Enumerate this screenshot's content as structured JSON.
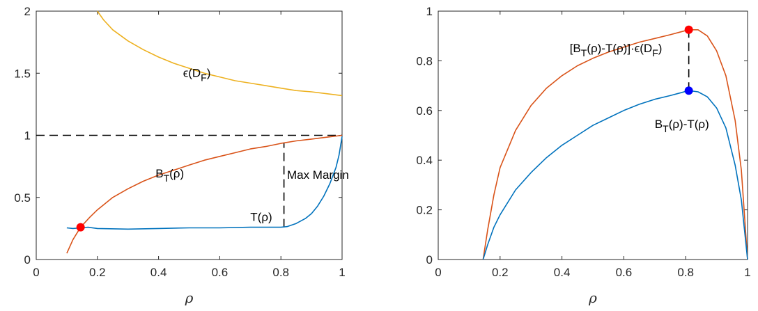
{
  "chart_data": [
    {
      "type": "line",
      "xlabel": "ρ",
      "xlim": [
        0,
        1
      ],
      "ylim": [
        0,
        2
      ],
      "xticks": [
        "0",
        "0.2",
        "0.4",
        "0.6",
        "0.8",
        "1"
      ],
      "yticks": [
        "0",
        "0.5",
        "1",
        "1.5",
        "2"
      ],
      "grid": false,
      "series": [
        {
          "key": "epsilon",
          "color": "#EDB120",
          "x": [
            0.2,
            0.22,
            0.25,
            0.3,
            0.35,
            0.4,
            0.45,
            0.5,
            0.55,
            0.6,
            0.65,
            0.7,
            0.75,
            0.8,
            0.85,
            0.9,
            0.95,
            1.0
          ],
          "y": [
            2.0,
            1.93,
            1.85,
            1.76,
            1.69,
            1.63,
            1.58,
            1.54,
            1.5,
            1.47,
            1.44,
            1.42,
            1.4,
            1.38,
            1.36,
            1.35,
            1.335,
            1.32
          ]
        },
        {
          "key": "bt",
          "color": "#D95319",
          "x": [
            0.1,
            0.12,
            0.145,
            0.175,
            0.2,
            0.25,
            0.3,
            0.35,
            0.4,
            0.45,
            0.5,
            0.55,
            0.6,
            0.65,
            0.7,
            0.75,
            0.8,
            0.85,
            0.9,
            0.95,
            1.0
          ],
          "y": [
            0.05,
            0.16,
            0.26,
            0.34,
            0.4,
            0.5,
            0.57,
            0.63,
            0.68,
            0.72,
            0.76,
            0.8,
            0.83,
            0.86,
            0.89,
            0.91,
            0.935,
            0.955,
            0.97,
            0.985,
            1.0
          ]
        },
        {
          "key": "t",
          "color": "#0072BD",
          "x": [
            0.1,
            0.12,
            0.145,
            0.17,
            0.2,
            0.3,
            0.4,
            0.5,
            0.6,
            0.7,
            0.75,
            0.8,
            0.82,
            0.85,
            0.88,
            0.9,
            0.92,
            0.94,
            0.96,
            0.98,
            0.99,
            1.0
          ],
          "y": [
            0.255,
            0.25,
            0.255,
            0.26,
            0.25,
            0.245,
            0.25,
            0.255,
            0.255,
            0.26,
            0.26,
            0.26,
            0.265,
            0.29,
            0.33,
            0.37,
            0.43,
            0.51,
            0.61,
            0.74,
            0.84,
            0.99
          ]
        }
      ],
      "markers": [
        {
          "x": 0.145,
          "y": 0.26,
          "color": "#FF0000"
        }
      ],
      "reference_lines": [
        {
          "kind": "horizontal",
          "y": 1,
          "x_range": [
            0,
            1
          ]
        },
        {
          "kind": "vertical",
          "x": 0.81,
          "y_range": [
            0.26,
            0.94
          ]
        }
      ],
      "annotations": [
        {
          "key": "eps",
          "text": "ϵ(D",
          "sub": "F",
          "tail": ")",
          "x": 0.48,
          "y": 1.47
        },
        {
          "key": "bt",
          "text": "B",
          "sub": "T",
          "tail": "(ρ)",
          "x": 0.39,
          "y": 0.66
        },
        {
          "key": "maxmargin",
          "text": "Max Margin",
          "x": 0.82,
          "y": 0.65
        },
        {
          "key": "t",
          "text": "T(ρ)",
          "x": 0.7,
          "y": 0.31
        }
      ]
    },
    {
      "type": "line",
      "xlabel": "ρ",
      "xlim": [
        0,
        1
      ],
      "ylim": [
        0,
        1
      ],
      "xticks": [
        "0",
        "0.2",
        "0.4",
        "0.6",
        "0.8",
        "1"
      ],
      "yticks": [
        "0",
        "0.2",
        "0.4",
        "0.6",
        "0.8",
        "1"
      ],
      "grid": false,
      "series": [
        {
          "key": "product",
          "color": "#D95319",
          "x": [
            0.145,
            0.16,
            0.18,
            0.2,
            0.25,
            0.3,
            0.35,
            0.4,
            0.45,
            0.5,
            0.55,
            0.6,
            0.65,
            0.7,
            0.75,
            0.78,
            0.81,
            0.84,
            0.87,
            0.9,
            0.93,
            0.96,
            0.98,
            1.0
          ],
          "y": [
            0.0,
            0.12,
            0.26,
            0.37,
            0.52,
            0.62,
            0.69,
            0.74,
            0.78,
            0.81,
            0.835,
            0.855,
            0.875,
            0.89,
            0.905,
            0.915,
            0.925,
            0.925,
            0.9,
            0.84,
            0.74,
            0.56,
            0.36,
            0.0
          ]
        },
        {
          "key": "diff",
          "color": "#0072BD",
          "x": [
            0.145,
            0.16,
            0.18,
            0.2,
            0.25,
            0.3,
            0.35,
            0.4,
            0.45,
            0.5,
            0.55,
            0.6,
            0.65,
            0.7,
            0.75,
            0.78,
            0.81,
            0.84,
            0.87,
            0.9,
            0.93,
            0.96,
            0.98,
            1.0
          ],
          "y": [
            0.0,
            0.06,
            0.13,
            0.18,
            0.28,
            0.35,
            0.41,
            0.46,
            0.5,
            0.54,
            0.57,
            0.6,
            0.625,
            0.645,
            0.66,
            0.67,
            0.68,
            0.675,
            0.655,
            0.61,
            0.53,
            0.38,
            0.24,
            0.0
          ]
        }
      ],
      "markers": [
        {
          "x": 0.81,
          "y": 0.925,
          "color": "#FF0000"
        },
        {
          "x": 0.81,
          "y": 0.68,
          "color": "#0000FF"
        }
      ],
      "reference_lines": [
        {
          "kind": "vertical",
          "x": 0.81,
          "y_range": [
            0.68,
            0.925
          ]
        }
      ],
      "annotations": [
        {
          "key": "product",
          "text": "[B",
          "sub": "T",
          "tail": "(ρ)-T(ρ)]·ϵ(D",
          "sub2": "F",
          "tail2": ")",
          "x": 0.425,
          "y": 0.835
        },
        {
          "key": "diff",
          "text": "B",
          "sub": "T",
          "tail": "(ρ)-T(ρ)",
          "x": 0.7,
          "y": 0.53
        }
      ]
    }
  ]
}
